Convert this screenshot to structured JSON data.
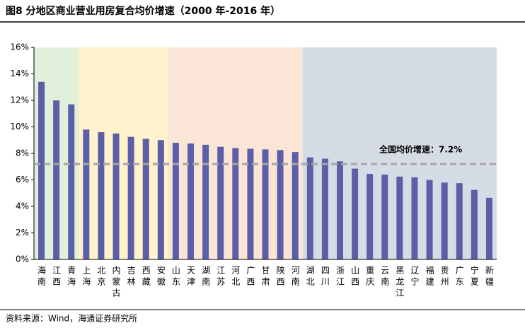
{
  "chart_data": {
    "type": "bar",
    "title": "图8  分地区商业营业用房复合均价增速（2000 年-2016 年）",
    "source": "资料来源：Wind，海通证券研究所",
    "categories": [
      "海南",
      "江西",
      "青海",
      "上海",
      "北京",
      "内蒙古",
      "吉林",
      "西藏",
      "安徽",
      "山东",
      "天津",
      "湖南",
      "江苏",
      "河北",
      "广西",
      "甘肃",
      "陕西",
      "河南",
      "湖北",
      "四川",
      "浙江",
      "山西",
      "重庆",
      "云南",
      "黑龙江",
      "辽宁",
      "福建",
      "贵州",
      "广东",
      "宁夏",
      "新疆"
    ],
    "values": [
      13.4,
      12.0,
      11.7,
      9.8,
      9.6,
      9.5,
      9.25,
      9.1,
      9.0,
      8.8,
      8.75,
      8.65,
      8.5,
      8.4,
      8.35,
      8.3,
      8.25,
      8.1,
      7.7,
      7.6,
      7.4,
      6.85,
      6.45,
      6.4,
      6.25,
      6.2,
      6.0,
      5.8,
      5.75,
      5.25,
      4.65
    ],
    "color": "#5c5fa8",
    "reference": {
      "value": 7.2,
      "label": "全国均价增速：7.2%"
    },
    "ylim": [
      0,
      16
    ],
    "yticks": [
      {
        "value": 0,
        "label": "0%"
      },
      {
        "value": 2,
        "label": "2%"
      },
      {
        "value": 4,
        "label": "4%"
      },
      {
        "value": 6,
        "label": "6%"
      },
      {
        "value": 8,
        "label": "8%"
      },
      {
        "value": 10,
        "label": "10%"
      },
      {
        "value": 12,
        "label": "12%"
      },
      {
        "value": 14,
        "label": "14%"
      },
      {
        "value": 16,
        "label": "16%"
      }
    ]
  }
}
